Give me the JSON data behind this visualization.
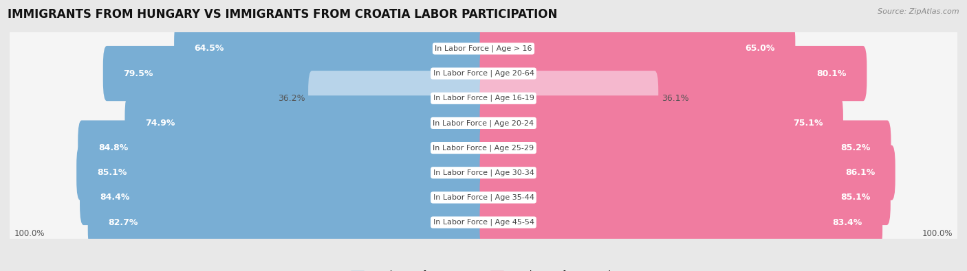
{
  "title": "IMMIGRANTS FROM HUNGARY VS IMMIGRANTS FROM CROATIA LABOR PARTICIPATION",
  "source": "Source: ZipAtlas.com",
  "categories": [
    "In Labor Force | Age > 16",
    "In Labor Force | Age 20-64",
    "In Labor Force | Age 16-19",
    "In Labor Force | Age 20-24",
    "In Labor Force | Age 25-29",
    "In Labor Force | Age 30-34",
    "In Labor Force | Age 35-44",
    "In Labor Force | Age 45-54"
  ],
  "hungary_values": [
    64.5,
    79.5,
    36.2,
    74.9,
    84.8,
    85.1,
    84.4,
    82.7
  ],
  "croatia_values": [
    65.0,
    80.1,
    36.1,
    75.1,
    85.2,
    86.1,
    85.1,
    83.4
  ],
  "hungary_color": "#79aed4",
  "hungary_light_color": "#b8d4ea",
  "croatia_color": "#f07ca0",
  "croatia_light_color": "#f5b8ce",
  "background_color": "#e8e8e8",
  "row_bg_color": "#f5f5f5",
  "row_border_color": "#d0d0d0",
  "label_color_white": "#ffffff",
  "label_color_dark": "#555555",
  "max_value": 100.0,
  "legend_hungary": "Immigrants from Hungary",
  "legend_croatia": "Immigrants from Croatia",
  "title_fontsize": 12,
  "label_fontsize": 9,
  "category_fontsize": 8,
  "axis_label_fontsize": 8.5,
  "low_threshold": 50
}
